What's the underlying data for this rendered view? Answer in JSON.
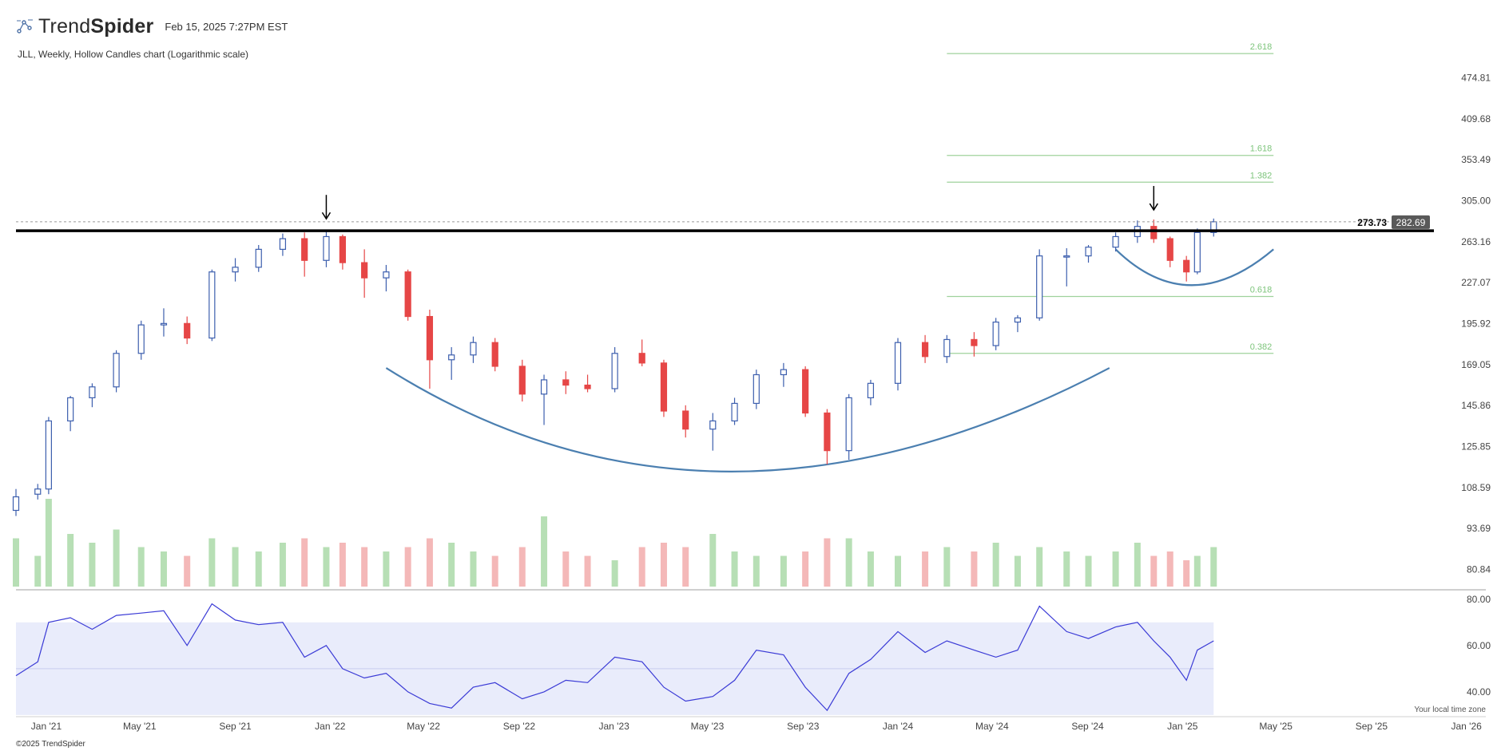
{
  "header": {
    "brand_light": "Trend",
    "brand_bold": "Spider",
    "date": "Feb 15, 2025 7:27PM EST",
    "logo_icon": "trendspider-logo-icon"
  },
  "subtitle": "JLL, Weekly, Hollow Candles chart (Logarithmic scale)",
  "footer": "©2025 TrendSpider",
  "timezone_note": "Your local time zone",
  "colors": {
    "up": "#3d5fae",
    "down": "#e64646",
    "vol_up": "#b7dfb5",
    "vol_down": "#f4b8b8",
    "fib": "#9fd29c",
    "fib_text": "#7cc47a",
    "arc": "#4b7fb0",
    "rsi": "#3b3bd6",
    "rsi_band": "#e9ecfb",
    "price_tag": "#595959"
  },
  "chart_data": {
    "type": "candlestick",
    "ticker": "JLL",
    "interval": "Weekly",
    "scale": "log",
    "x_range": [
      "2020-11-23",
      "2026-01-26"
    ],
    "x_ticks": [
      {
        "label": "Jan '21",
        "date": "2021-01-01"
      },
      {
        "label": "May '21",
        "date": "2021-05-01"
      },
      {
        "label": "Sep '21",
        "date": "2021-09-01"
      },
      {
        "label": "Jan '22",
        "date": "2022-01-01"
      },
      {
        "label": "May '22",
        "date": "2022-05-01"
      },
      {
        "label": "Sep '22",
        "date": "2022-09-01"
      },
      {
        "label": "Jan '23",
        "date": "2023-01-01"
      },
      {
        "label": "May '23",
        "date": "2023-05-01"
      },
      {
        "label": "Sep '23",
        "date": "2023-09-01"
      },
      {
        "label": "Jan '24",
        "date": "2024-01-01"
      },
      {
        "label": "May '24",
        "date": "2024-05-01"
      },
      {
        "label": "Sep '24",
        "date": "2024-09-01"
      },
      {
        "label": "Jan '25",
        "date": "2025-01-01"
      },
      {
        "label": "May '25",
        "date": "2025-05-01"
      },
      {
        "label": "Sep '25",
        "date": "2025-09-01"
      },
      {
        "label": "Jan '26",
        "date": "2026-01-01"
      }
    ],
    "price_ticks": [
      "474.81",
      "409.68",
      "353.49",
      "305.00",
      "263.16",
      "227.07",
      "195.92",
      "169.05",
      "145.86",
      "125.85",
      "108.59",
      "93.69",
      "80.84"
    ],
    "price_range": [
      76,
      560
    ],
    "last_price": "282.69",
    "resistance": {
      "value": 273.73,
      "label": "273.73"
    },
    "fib_levels": [
      {
        "label": "2.618",
        "price": 518
      },
      {
        "label": "1.618",
        "price": 359
      },
      {
        "label": "1.382",
        "price": 326
      },
      {
        "label": "0.618",
        "price": 216
      },
      {
        "label": "0.382",
        "price": 176
      }
    ],
    "fib_span": [
      "2024-03-04",
      "2025-04-28"
    ],
    "arrows": [
      {
        "date": "2021-12-27",
        "price": 276
      },
      {
        "date": "2024-11-25",
        "price": 285
      }
    ],
    "arcs": [
      {
        "name": "cup",
        "points": [
          [
            "2022-03-14",
            167
          ],
          [
            "2023-06-01",
            115
          ],
          [
            "2024-09-29",
            167
          ]
        ]
      },
      {
        "name": "handle",
        "points": [
          [
            "2024-10-07",
            256
          ],
          [
            "2025-01-13",
            225
          ],
          [
            "2025-04-28",
            256
          ]
        ]
      }
    ],
    "candles": [
      {
        "d": "2020-11-23",
        "o": 100,
        "h": 108,
        "l": 98,
        "c": 105
      },
      {
        "d": "2020-12-21",
        "o": 106,
        "h": 110,
        "l": 104,
        "c": 108
      },
      {
        "d": "2021-01-04",
        "o": 108,
        "h": 140,
        "l": 106,
        "c": 138
      },
      {
        "d": "2021-02-01",
        "o": 138,
        "h": 151,
        "l": 133,
        "c": 150
      },
      {
        "d": "2021-03-01",
        "o": 150,
        "h": 158,
        "l": 145,
        "c": 156
      },
      {
        "d": "2021-04-01",
        "o": 156,
        "h": 178,
        "l": 153,
        "c": 176
      },
      {
        "d": "2021-05-03",
        "o": 176,
        "h": 198,
        "l": 172,
        "c": 195
      },
      {
        "d": "2021-06-01",
        "o": 195,
        "h": 207,
        "l": 187,
        "c": 196
      },
      {
        "d": "2021-07-01",
        "o": 196,
        "h": 201,
        "l": 182,
        "c": 186
      },
      {
        "d": "2021-08-02",
        "o": 186,
        "h": 238,
        "l": 184,
        "c": 236
      },
      {
        "d": "2021-09-01",
        "o": 236,
        "h": 248,
        "l": 228,
        "c": 240
      },
      {
        "d": "2021-10-01",
        "o": 240,
        "h": 260,
        "l": 236,
        "c": 256
      },
      {
        "d": "2021-11-01",
        "o": 256,
        "h": 271,
        "l": 250,
        "c": 266
      },
      {
        "d": "2021-11-29",
        "o": 266,
        "h": 272,
        "l": 232,
        "c": 246
      },
      {
        "d": "2021-12-27",
        "o": 246,
        "h": 274,
        "l": 240,
        "c": 268
      },
      {
        "d": "2022-01-17",
        "o": 268,
        "h": 270,
        "l": 238,
        "c": 244
      },
      {
        "d": "2022-02-14",
        "o": 244,
        "h": 256,
        "l": 215,
        "c": 231
      },
      {
        "d": "2022-03-14",
        "o": 231,
        "h": 242,
        "l": 220,
        "c": 236
      },
      {
        "d": "2022-04-11",
        "o": 236,
        "h": 238,
        "l": 198,
        "c": 201
      },
      {
        "d": "2022-05-09",
        "o": 201,
        "h": 206,
        "l": 155,
        "c": 172
      },
      {
        "d": "2022-06-06",
        "o": 172,
        "h": 180,
        "l": 160,
        "c": 175
      },
      {
        "d": "2022-07-04",
        "o": 175,
        "h": 187,
        "l": 170,
        "c": 183
      },
      {
        "d": "2022-08-01",
        "o": 183,
        "h": 186,
        "l": 165,
        "c": 168
      },
      {
        "d": "2022-09-05",
        "o": 168,
        "h": 172,
        "l": 148,
        "c": 152
      },
      {
        "d": "2022-10-03",
        "o": 152,
        "h": 163,
        "l": 136,
        "c": 160
      },
      {
        "d": "2022-10-31",
        "o": 160,
        "h": 165,
        "l": 152,
        "c": 157
      },
      {
        "d": "2022-11-28",
        "o": 157,
        "h": 163,
        "l": 153,
        "c": 155
      },
      {
        "d": "2023-01-02",
        "o": 155,
        "h": 180,
        "l": 153,
        "c": 176
      },
      {
        "d": "2023-02-06",
        "o": 176,
        "h": 185,
        "l": 168,
        "c": 170
      },
      {
        "d": "2023-03-06",
        "o": 170,
        "h": 172,
        "l": 140,
        "c": 143
      },
      {
        "d": "2023-04-03",
        "o": 143,
        "h": 146,
        "l": 130,
        "c": 134
      },
      {
        "d": "2023-05-08",
        "o": 134,
        "h": 142,
        "l": 124,
        "c": 138
      },
      {
        "d": "2023-06-05",
        "o": 138,
        "h": 150,
        "l": 136,
        "c": 147
      },
      {
        "d": "2023-07-03",
        "o": 147,
        "h": 166,
        "l": 144,
        "c": 163
      },
      {
        "d": "2023-08-07",
        "o": 163,
        "h": 170,
        "l": 156,
        "c": 166
      },
      {
        "d": "2023-09-04",
        "o": 166,
        "h": 168,
        "l": 140,
        "c": 142
      },
      {
        "d": "2023-10-02",
        "o": 142,
        "h": 144,
        "l": 118,
        "c": 124
      },
      {
        "d": "2023-10-30",
        "o": 124,
        "h": 152,
        "l": 120,
        "c": 150
      },
      {
        "d": "2023-11-27",
        "o": 150,
        "h": 160,
        "l": 146,
        "c": 158
      },
      {
        "d": "2024-01-01",
        "o": 158,
        "h": 186,
        "l": 154,
        "c": 183
      },
      {
        "d": "2024-02-05",
        "o": 183,
        "h": 188,
        "l": 170,
        "c": 174
      },
      {
        "d": "2024-03-04",
        "o": 174,
        "h": 188,
        "l": 170,
        "c": 185
      },
      {
        "d": "2024-04-08",
        "o": 185,
        "h": 190,
        "l": 174,
        "c": 181
      },
      {
        "d": "2024-05-06",
        "o": 181,
        "h": 200,
        "l": 178,
        "c": 197
      },
      {
        "d": "2024-06-03",
        "o": 197,
        "h": 202,
        "l": 190,
        "c": 200
      },
      {
        "d": "2024-07-01",
        "o": 200,
        "h": 256,
        "l": 198,
        "c": 250
      },
      {
        "d": "2024-08-05",
        "o": 250,
        "h": 257,
        "l": 224,
        "c": 250
      },
      {
        "d": "2024-09-02",
        "o": 250,
        "h": 260,
        "l": 244,
        "c": 258
      },
      {
        "d": "2024-10-07",
        "o": 258,
        "h": 272,
        "l": 254,
        "c": 268
      },
      {
        "d": "2024-11-04",
        "o": 268,
        "h": 284,
        "l": 262,
        "c": 278
      },
      {
        "d": "2024-11-25",
        "o": 278,
        "h": 285,
        "l": 262,
        "c": 266
      },
      {
        "d": "2024-12-16",
        "o": 266,
        "h": 268,
        "l": 240,
        "c": 246
      },
      {
        "d": "2025-01-06",
        "o": 246,
        "h": 250,
        "l": 228,
        "c": 236
      },
      {
        "d": "2025-01-20",
        "o": 236,
        "h": 276,
        "l": 234,
        "c": 272
      },
      {
        "d": "2025-02-10",
        "o": 272,
        "h": 286,
        "l": 268,
        "c": 282.69
      }
    ],
    "volume": [
      {
        "d": "2020-11-23",
        "v": 0.55
      },
      {
        "d": "2020-12-21",
        "v": 0.35
      },
      {
        "d": "2021-01-04",
        "v": 1.0
      },
      {
        "d": "2021-02-01",
        "v": 0.6
      },
      {
        "d": "2021-03-01",
        "v": 0.5
      },
      {
        "d": "2021-04-01",
        "v": 0.65
      },
      {
        "d": "2021-05-03",
        "v": 0.45
      },
      {
        "d": "2021-06-01",
        "v": 0.4
      },
      {
        "d": "2021-07-01",
        "v": 0.35
      },
      {
        "d": "2021-08-02",
        "v": 0.55
      },
      {
        "d": "2021-09-01",
        "v": 0.45
      },
      {
        "d": "2021-10-01",
        "v": 0.4
      },
      {
        "d": "2021-11-01",
        "v": 0.5
      },
      {
        "d": "2021-11-29",
        "v": 0.55
      },
      {
        "d": "2021-12-27",
        "v": 0.45
      },
      {
        "d": "2022-01-17",
        "v": 0.5
      },
      {
        "d": "2022-02-14",
        "v": 0.45
      },
      {
        "d": "2022-03-14",
        "v": 0.4
      },
      {
        "d": "2022-04-11",
        "v": 0.45
      },
      {
        "d": "2022-05-09",
        "v": 0.55
      },
      {
        "d": "2022-06-06",
        "v": 0.5
      },
      {
        "d": "2022-07-04",
        "v": 0.4
      },
      {
        "d": "2022-08-01",
        "v": 0.35
      },
      {
        "d": "2022-09-05",
        "v": 0.45
      },
      {
        "d": "2022-10-03",
        "v": 0.8
      },
      {
        "d": "2022-10-31",
        "v": 0.4
      },
      {
        "d": "2022-11-28",
        "v": 0.35
      },
      {
        "d": "2023-01-02",
        "v": 0.3
      },
      {
        "d": "2023-02-06",
        "v": 0.45
      },
      {
        "d": "2023-03-06",
        "v": 0.5
      },
      {
        "d": "2023-04-03",
        "v": 0.45
      },
      {
        "d": "2023-05-08",
        "v": 0.6
      },
      {
        "d": "2023-06-05",
        "v": 0.4
      },
      {
        "d": "2023-07-03",
        "v": 0.35
      },
      {
        "d": "2023-08-07",
        "v": 0.35
      },
      {
        "d": "2023-09-04",
        "v": 0.4
      },
      {
        "d": "2023-10-02",
        "v": 0.55
      },
      {
        "d": "2023-10-30",
        "v": 0.55
      },
      {
        "d": "2023-11-27",
        "v": 0.4
      },
      {
        "d": "2024-01-01",
        "v": 0.35
      },
      {
        "d": "2024-02-05",
        "v": 0.4
      },
      {
        "d": "2024-03-04",
        "v": 0.45
      },
      {
        "d": "2024-04-08",
        "v": 0.4
      },
      {
        "d": "2024-05-06",
        "v": 0.5
      },
      {
        "d": "2024-06-03",
        "v": 0.35
      },
      {
        "d": "2024-07-01",
        "v": 0.45
      },
      {
        "d": "2024-08-05",
        "v": 0.4
      },
      {
        "d": "2024-09-02",
        "v": 0.35
      },
      {
        "d": "2024-10-07",
        "v": 0.4
      },
      {
        "d": "2024-11-04",
        "v": 0.5
      },
      {
        "d": "2024-11-25",
        "v": 0.35
      },
      {
        "d": "2024-12-16",
        "v": 0.4
      },
      {
        "d": "2025-01-06",
        "v": 0.3
      },
      {
        "d": "2025-01-20",
        "v": 0.35
      },
      {
        "d": "2025-02-10",
        "v": 0.45
      }
    ],
    "rsi": {
      "ticks": [
        "80.00",
        "60.00",
        "40.00"
      ],
      "range": [
        31,
        82
      ],
      "band": [
        30,
        70
      ],
      "midline": 50,
      "values": [
        {
          "d": "2020-11-23",
          "v": 47
        },
        {
          "d": "2020-12-21",
          "v": 53
        },
        {
          "d": "2021-01-04",
          "v": 70
        },
        {
          "d": "2021-02-01",
          "v": 72
        },
        {
          "d": "2021-03-01",
          "v": 67
        },
        {
          "d": "2021-04-01",
          "v": 73
        },
        {
          "d": "2021-05-03",
          "v": 74
        },
        {
          "d": "2021-06-01",
          "v": 75
        },
        {
          "d": "2021-07-01",
          "v": 60
        },
        {
          "d": "2021-08-02",
          "v": 78
        },
        {
          "d": "2021-09-01",
          "v": 71
        },
        {
          "d": "2021-10-01",
          "v": 69
        },
        {
          "d": "2021-11-01",
          "v": 70
        },
        {
          "d": "2021-11-29",
          "v": 55
        },
        {
          "d": "2021-12-27",
          "v": 60
        },
        {
          "d": "2022-01-17",
          "v": 50
        },
        {
          "d": "2022-02-14",
          "v": 46
        },
        {
          "d": "2022-03-14",
          "v": 48
        },
        {
          "d": "2022-04-11",
          "v": 40
        },
        {
          "d": "2022-05-09",
          "v": 35
        },
        {
          "d": "2022-06-06",
          "v": 33
        },
        {
          "d": "2022-07-04",
          "v": 42
        },
        {
          "d": "2022-08-01",
          "v": 44
        },
        {
          "d": "2022-09-05",
          "v": 37
        },
        {
          "d": "2022-10-03",
          "v": 40
        },
        {
          "d": "2022-10-31",
          "v": 45
        },
        {
          "d": "2022-11-28",
          "v": 44
        },
        {
          "d": "2023-01-02",
          "v": 55
        },
        {
          "d": "2023-02-06",
          "v": 53
        },
        {
          "d": "2023-03-06",
          "v": 42
        },
        {
          "d": "2023-04-03",
          "v": 36
        },
        {
          "d": "2023-05-08",
          "v": 38
        },
        {
          "d": "2023-06-05",
          "v": 45
        },
        {
          "d": "2023-07-03",
          "v": 58
        },
        {
          "d": "2023-08-07",
          "v": 56
        },
        {
          "d": "2023-09-04",
          "v": 42
        },
        {
          "d": "2023-10-02",
          "v": 32
        },
        {
          "d": "2023-10-30",
          "v": 48
        },
        {
          "d": "2023-11-27",
          "v": 54
        },
        {
          "d": "2024-01-01",
          "v": 66
        },
        {
          "d": "2024-02-05",
          "v": 57
        },
        {
          "d": "2024-03-04",
          "v": 62
        },
        {
          "d": "2024-04-08",
          "v": 58
        },
        {
          "d": "2024-05-06",
          "v": 55
        },
        {
          "d": "2024-06-03",
          "v": 58
        },
        {
          "d": "2024-07-01",
          "v": 77
        },
        {
          "d": "2024-08-05",
          "v": 66
        },
        {
          "d": "2024-09-02",
          "v": 63
        },
        {
          "d": "2024-10-07",
          "v": 68
        },
        {
          "d": "2024-11-04",
          "v": 70
        },
        {
          "d": "2024-11-25",
          "v": 62
        },
        {
          "d": "2024-12-16",
          "v": 55
        },
        {
          "d": "2025-01-06",
          "v": 45
        },
        {
          "d": "2025-01-20",
          "v": 58
        },
        {
          "d": "2025-02-10",
          "v": 62
        }
      ]
    }
  }
}
